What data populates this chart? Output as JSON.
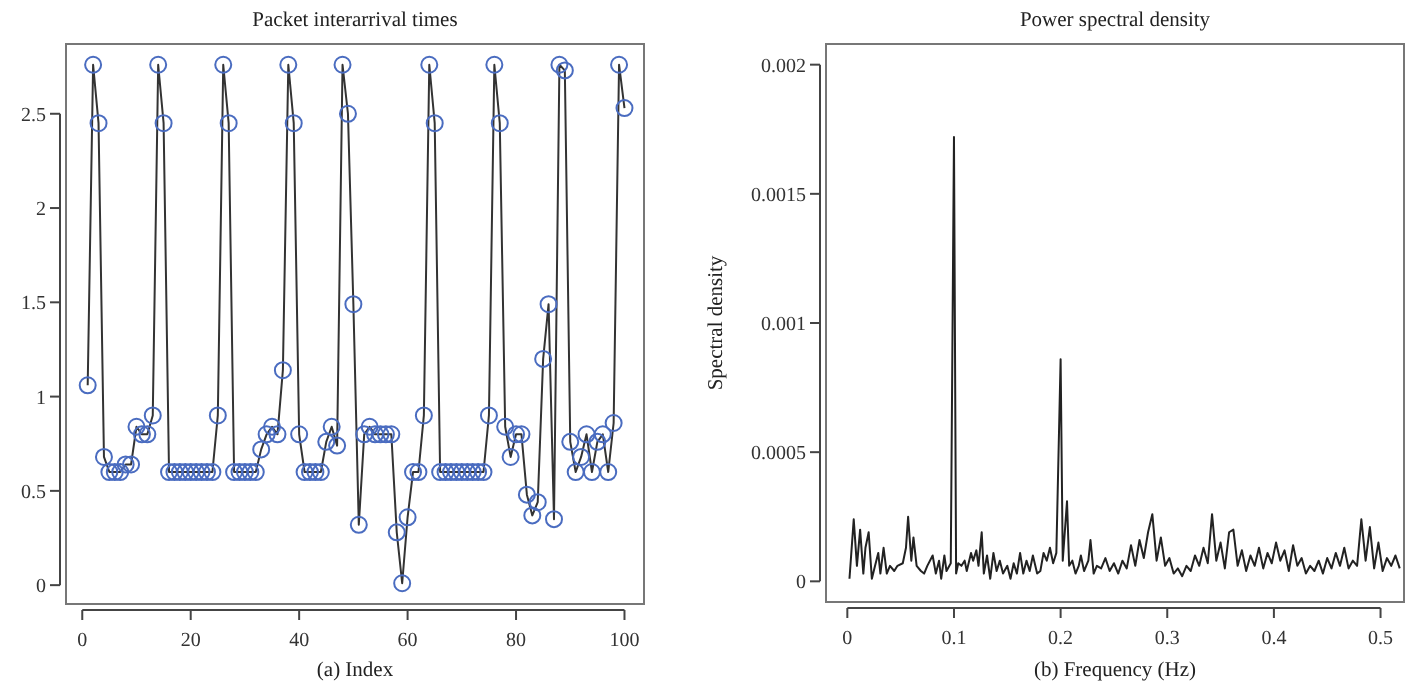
{
  "chart_data": [
    {
      "type": "scatter",
      "title": "Packet interarrival times",
      "xlabel": "(a)  Index",
      "xlim": [
        -3,
        103.6
      ],
      "ylim": [
        -0.1,
        2.87
      ],
      "xticks": [
        0,
        20,
        40,
        60,
        80,
        100
      ],
      "yticks": [
        0,
        0.5,
        1,
        1.5,
        2,
        2.5
      ],
      "x": [
        1,
        2,
        3,
        4,
        5,
        6,
        7,
        8,
        9,
        10,
        11,
        12,
        13,
        14,
        15,
        16,
        17,
        18,
        19,
        20,
        21,
        22,
        23,
        24,
        25,
        26,
        27,
        28,
        29,
        30,
        31,
        32,
        33,
        34,
        35,
        36,
        37,
        38,
        39,
        40,
        41,
        42,
        43,
        44,
        45,
        46,
        47,
        48,
        49,
        50,
        51,
        52,
        53,
        54,
        55,
        56,
        57,
        58,
        59,
        60,
        61,
        62,
        63,
        64,
        65,
        66,
        67,
        68,
        69,
        70,
        71,
        72,
        73,
        74,
        75,
        76,
        77,
        78,
        79,
        80,
        81,
        82,
        83,
        84,
        85,
        86,
        87,
        88,
        89,
        90,
        91,
        92,
        93,
        94,
        95,
        96,
        97,
        98,
        99,
        100
      ],
      "series": [
        {
          "type": "line",
          "color": "#333333",
          "line_style": "solid",
          "values": [
            1.06,
            2.76,
            2.45,
            0.68,
            0.6,
            0.6,
            0.6,
            0.64,
            0.64,
            0.84,
            0.8,
            0.8,
            0.9,
            2.76,
            2.45,
            0.6,
            0.6,
            0.6,
            0.6,
            0.6,
            0.6,
            0.6,
            0.6,
            0.6,
            0.9,
            2.76,
            2.45,
            0.6,
            0.6,
            0.6,
            0.6,
            0.6,
            0.72,
            0.8,
            0.84,
            0.8,
            1.14,
            2.76,
            2.45,
            0.8,
            0.6,
            0.6,
            0.6,
            0.6,
            0.76,
            0.84,
            0.74,
            2.76,
            2.5,
            1.49,
            0.32,
            0.8,
            0.84,
            0.8,
            0.8,
            0.8,
            0.8,
            0.28,
            0.01,
            0.36,
            0.6,
            0.6,
            0.9,
            2.76,
            2.45,
            0.6,
            0.6,
            0.6,
            0.6,
            0.6,
            0.6,
            0.6,
            0.6,
            0.6,
            0.9,
            2.76,
            2.45,
            0.84,
            0.68,
            0.8,
            0.8,
            0.48,
            0.37,
            0.44,
            1.2,
            1.49,
            0.35,
            2.76,
            2.73,
            0.76,
            0.6,
            0.68,
            0.8,
            0.6,
            0.76,
            0.8,
            0.6,
            0.86,
            2.76,
            2.53
          ]
        },
        {
          "color": "#4a6cc0",
          "marker": "circle",
          "values": [
            1.06,
            2.76,
            2.45,
            0.68,
            0.6,
            0.6,
            0.6,
            0.64,
            0.64,
            0.84,
            0.8,
            0.8,
            0.9,
            2.76,
            2.45,
            0.6,
            0.6,
            0.6,
            0.6,
            0.6,
            0.6,
            0.6,
            0.6,
            0.6,
            0.9,
            2.76,
            2.45,
            0.6,
            0.6,
            0.6,
            0.6,
            0.6,
            0.72,
            0.8,
            0.84,
            0.8,
            1.14,
            2.76,
            2.45,
            0.8,
            0.6,
            0.6,
            0.6,
            0.6,
            0.76,
            0.84,
            0.74,
            2.76,
            2.5,
            1.49,
            0.32,
            0.8,
            0.84,
            0.8,
            0.8,
            0.8,
            0.8,
            0.28,
            0.01,
            0.36,
            0.6,
            0.6,
            0.9,
            2.76,
            2.45,
            0.6,
            0.6,
            0.6,
            0.6,
            0.6,
            0.6,
            0.6,
            0.6,
            0.6,
            0.9,
            2.76,
            2.45,
            0.84,
            0.68,
            0.8,
            0.8,
            0.48,
            0.37,
            0.44,
            1.2,
            1.49,
            0.35,
            2.76,
            2.73,
            0.76,
            0.6,
            0.68,
            0.8,
            0.6,
            0.76,
            0.8,
            0.6,
            0.86,
            2.76,
            2.53
          ]
        }
      ]
    },
    {
      "type": "line",
      "title": "Power spectral density",
      "xlabel": "(b)  Frequency (Hz)",
      "ylabel": "Spectral density",
      "xlim": [
        -0.02,
        0.522
      ],
      "ylim": [
        -8e-05,
        0.00208
      ],
      "xticks": [
        0,
        0.1,
        0.2,
        0.3,
        0.4,
        0.5
      ],
      "yticks": [
        0,
        0.0005,
        0.001,
        0.0015,
        0.002
      ],
      "series": [
        {
          "color": "#222222",
          "line_style": "solid",
          "x": [
            0.002,
            0.006,
            0.009,
            0.012,
            0.015,
            0.017,
            0.02,
            0.023,
            0.026,
            0.029,
            0.031,
            0.034,
            0.037,
            0.04,
            0.044,
            0.047,
            0.052,
            0.055,
            0.057,
            0.06,
            0.062,
            0.065,
            0.069,
            0.072,
            0.075,
            0.08,
            0.083,
            0.086,
            0.088,
            0.091,
            0.093,
            0.097,
            0.1,
            0.102,
            0.104,
            0.107,
            0.11,
            0.112,
            0.116,
            0.118,
            0.121,
            0.123,
            0.126,
            0.128,
            0.131,
            0.134,
            0.137,
            0.14,
            0.143,
            0.146,
            0.15,
            0.153,
            0.156,
            0.159,
            0.162,
            0.165,
            0.168,
            0.171,
            0.174,
            0.178,
            0.181,
            0.184,
            0.187,
            0.19,
            0.193,
            0.196,
            0.2,
            0.202,
            0.206,
            0.208,
            0.211,
            0.214,
            0.217,
            0.219,
            0.222,
            0.226,
            0.228,
            0.231,
            0.234,
            0.238,
            0.242,
            0.246,
            0.25,
            0.254,
            0.258,
            0.262,
            0.266,
            0.27,
            0.274,
            0.278,
            0.282,
            0.286,
            0.29,
            0.294,
            0.298,
            0.302,
            0.306,
            0.31,
            0.314,
            0.318,
            0.322,
            0.326,
            0.33,
            0.334,
            0.338,
            0.342,
            0.346,
            0.35,
            0.354,
            0.358,
            0.362,
            0.366,
            0.37,
            0.374,
            0.378,
            0.382,
            0.386,
            0.39,
            0.394,
            0.398,
            0.402,
            0.406,
            0.41,
            0.414,
            0.418,
            0.422,
            0.426,
            0.43,
            0.434,
            0.438,
            0.442,
            0.446,
            0.45,
            0.454,
            0.458,
            0.462,
            0.466,
            0.47,
            0.474,
            0.478,
            0.482,
            0.486,
            0.49,
            0.494,
            0.498,
            0.502,
            0.506,
            0.51,
            0.514,
            0.518
          ],
          "values": [
            1e-05,
            0.00024,
            6e-05,
            0.0002,
            3e-05,
            0.00013,
            0.00019,
            1e-05,
            6e-05,
            0.00011,
            3e-05,
            0.00013,
            3e-05,
            6e-05,
            4e-05,
            6e-05,
            7e-05,
            0.00013,
            0.00025,
            8e-05,
            0.00017,
            6e-05,
            4e-05,
            3e-05,
            6e-05,
            0.0001,
            3e-05,
            8e-05,
            1e-05,
            0.0001,
            4e-05,
            7e-05,
            0.00172,
            3e-05,
            7e-05,
            6e-05,
            8e-05,
            4e-05,
            0.00011,
            8e-05,
            0.00012,
            6e-05,
            0.00019,
            3e-05,
            0.0001,
            1e-05,
            0.00011,
            4e-05,
            8e-05,
            3e-05,
            6e-05,
            1e-05,
            7e-05,
            3e-05,
            0.00011,
            3e-05,
            8e-05,
            4e-05,
            0.0001,
            3e-05,
            4e-05,
            0.00011,
            8e-05,
            0.00013,
            7e-05,
            0.00011,
            0.00086,
            8e-05,
            0.00031,
            6e-05,
            8e-05,
            3e-05,
            6e-05,
            0.0001,
            4e-05,
            8e-05,
            0.00016,
            3e-05,
            6e-05,
            5e-05,
            9e-05,
            4e-05,
            7e-05,
            3e-05,
            8e-05,
            5e-05,
            0.00014,
            6e-05,
            0.00016,
            9e-05,
            0.00019,
            0.00026,
            8e-05,
            0.00017,
            6e-05,
            9e-05,
            3e-05,
            5e-05,
            2e-05,
            6e-05,
            4e-05,
            0.0001,
            6e-05,
            0.00013,
            7e-05,
            0.00026,
            8e-05,
            0.00015,
            5e-05,
            0.00019,
            0.0002,
            6e-05,
            0.00012,
            4e-05,
            0.0001,
            6e-05,
            0.00013,
            5e-05,
            0.00011,
            7e-05,
            0.00015,
            8e-05,
            0.00012,
            4e-05,
            0.00014,
            6e-05,
            9e-05,
            3e-05,
            6e-05,
            4e-05,
            8e-05,
            3e-05,
            9e-05,
            5e-05,
            0.00011,
            6e-05,
            0.00013,
            5e-05,
            8e-05,
            6e-05,
            0.00024,
            8e-05,
            0.00021,
            5e-05,
            0.00015,
            4e-05,
            9e-05,
            6e-05,
            0.0001,
            5e-05
          ]
        }
      ]
    }
  ]
}
